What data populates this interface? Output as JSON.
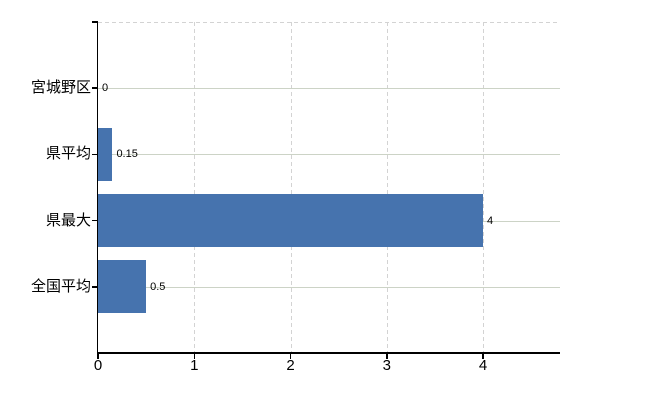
{
  "chart_data": {
    "type": "bar",
    "orientation": "horizontal",
    "title": "",
    "xlabel": "",
    "ylabel": "",
    "legend": "none",
    "categories": [
      "宮城野区",
      "県平均",
      "県最大",
      "全国平均"
    ],
    "values": [
      0,
      0.15,
      4,
      0.5
    ],
    "value_labels": [
      "0",
      "0.15",
      "4",
      "0.5"
    ],
    "x_ticks": [
      0,
      1,
      2,
      3,
      4
    ],
    "x_tick_labels": [
      "0",
      "1",
      "2",
      "3",
      "4"
    ],
    "xlim": [
      0,
      4.8
    ],
    "grid": {
      "vertical_style": "dashed",
      "horizontal_style": "solid-at-category-centers",
      "top_border": "dashed"
    }
  },
  "colors": {
    "bar": "#4673ae",
    "grid_horizontal": "#ccd3c6",
    "grid_vertical": "#d3d3d3",
    "axis": "#000000",
    "text": "#000000",
    "background": "#ffffff"
  }
}
